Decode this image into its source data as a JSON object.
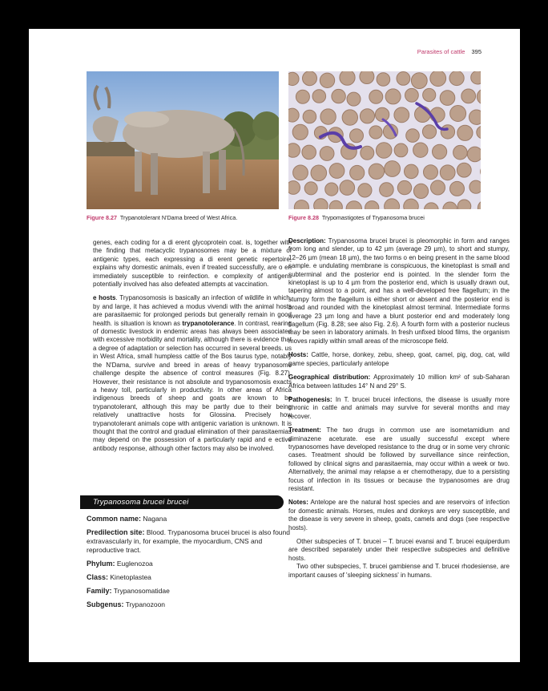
{
  "running_header": {
    "section": "Parasites of cattle",
    "page": "395"
  },
  "figures": [
    {
      "label": "Figure 8.27",
      "caption": "Trypanotolerant N'Dama breed of West Africa."
    },
    {
      "label": "Figure 8.28",
      "caption": "Trypomastigotes of Trypanosoma brucei"
    }
  ],
  "left_column": {
    "p1": "genes, each coding for a di erent glycoprotein coat. is, together with the finding that metacyclic trypanosomes may be a mixture of antigenic types, each expressing a di erent genetic repertoire, explains why domestic animals, even if treated successfully, are o en immediately susceptible to reinfection. e complexity of antigens potentially involved has also defeated attempts at vaccination.",
    "p2_head": "e hosts",
    "p2": ". Trypanosomosis is basically an infection of wildlife in which, by and large, it has achieved a modus vivendi with the animal hosts are parasitaemic for prolonged periods but generally remain in good health. is situation is known as ",
    "p2_bold": "trypanotolerance",
    "p3": ". In contrast, rearing of domestic livestock in endemic areas has always been associated with excessive morbidity and mortality, although there is evidence that a degree of adaptation or selection has occurred in several breeds. us in West Africa, small humpless cattle of the Bos taurus type, notably the N'Dama, survive and breed in areas of heavy trypanosome challenge despite the absence of control measures (Fig. 8.27). However, their resistance is not absolute and trypanosomosis exacts a heavy toll, particularly in productivity. In other areas of Africa indigenous breeds of sheep and goats are known to be trypanotolerant, although this may be partly due to their being relatively unattractive hosts for Glossina. Precisely how trypanotolerant animals cope with antigenic variation is unknown. It is thought that the control and gradual elimination of their parasitaemias may depend on the possession of a particularly rapid and e ective antibody response, although other factors may also be involved."
  },
  "species_banner": "Trypanosoma brucei brucei",
  "taxonomy": [
    {
      "key": "Common name:",
      "value": "Nagana"
    },
    {
      "key": "Predilection site:",
      "value": "Blood. Trypanosoma brucei brucei is also found extravascularly in, for example, the myocardium, CNS and reproductive tract."
    },
    {
      "key": "Phylum:",
      "value": "Euglenozoa"
    },
    {
      "key": "Class:",
      "value": "Kinetoplastea"
    },
    {
      "key": "Family:",
      "value": "Trypanosomatidae"
    },
    {
      "key": "Subgenus:",
      "value": "Trypanozoon"
    }
  ],
  "right_column": [
    {
      "key": "Description:",
      "value": "Trypanosoma brucei brucei is pleomorphic in form and ranges from long and slender, up to 42 µm (average 29 µm), to short and stumpy, 12–26 µm (mean 18 µm), the two forms o en being present in the same blood sample. e undulating membrane is conspicuous, the kinetoplast is small and subterminal and the posterior end is pointed. In the slender form the kinetoplast is up to 4 µm from the posterior end, which is usually drawn out, tapering almost to a point, and has a well-developed free flagellum; in the stumpy form the flagellum is either short or absent and the posterior end is broad and rounded with the kinetoplast almost terminal. Intermediate forms average 23 µm long and have a blunt posterior end and moderately long flagellum (Fig. 8.28; see also Fig. 2.6). A fourth form with a posterior nucleus may be seen in laboratory animals. In fresh unfixed blood films, the organism moves rapidly within small areas of the microscope field."
    },
    {
      "key": "Hosts:",
      "value": "Cattle, horse, donkey, zebu, sheep, goat, camel, pig, dog, cat, wild game species, particularly antelope"
    },
    {
      "key": "Geographical distribution:",
      "value": "Approximately 10 million km² of sub-Saharan Africa between latitudes 14° N and 29° S."
    },
    {
      "key": "Pathogenesis:",
      "value": "In T. brucei brucei infections, the disease is usually more chronic in cattle and animals may survive for several months and may recover."
    },
    {
      "key": "Treatment:",
      "value": "The two drugs in common use are isometamidium and diminazene aceturate. ese are usually successful except where trypanosomes have developed resistance to the drug or in some very chronic cases. Treatment should be followed by surveillance since reinfection, followed by clinical signs and parasitaemia, may occur within a week or two. Alternatively, the animal may relapse a er chemotherapy, due to a persisting focus of infection in its tissues or because the trypanosomes are drug resistant."
    },
    {
      "key": "Notes:",
      "value": "Antelope are the natural host species and are reservoirs of infection for domestic animals. Horses, mules and donkeys are very susceptible, and the disease is very severe in sheep, goats, camels and dogs (see respective hosts)."
    }
  ],
  "closing_paragraphs": [
    "Other subspecies of T. brucei – T. brucei evansi and T. brucei equiperdum are described separately under their respective subspecies and definitive hosts.",
    "Two other subspecies, T. brucei gambiense and T. brucei rhodesiense, are important causes of 'sleeping sickness' in humans."
  ]
}
